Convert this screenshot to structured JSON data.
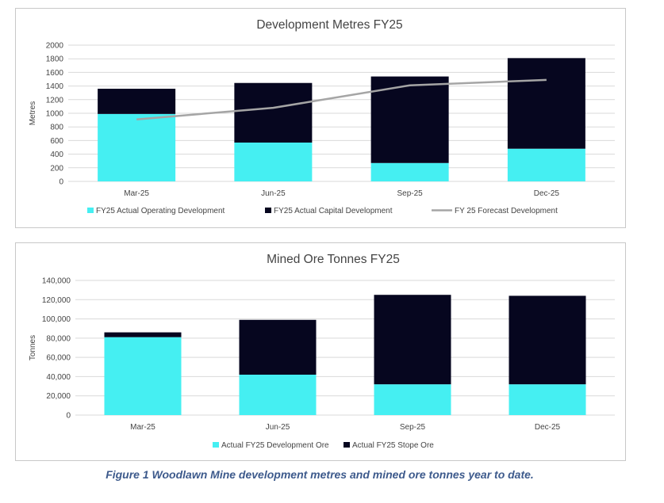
{
  "colors": {
    "operating": "#45EFF2",
    "capital": "#06061F",
    "forecast": "#A5A5A5",
    "grid": "#D9D9D9",
    "text": "#444444"
  },
  "caption": "Figure 1 Woodlawn Mine development metres and mined ore tonnes year to date.",
  "chart_data": [
    {
      "type": "bar",
      "stacked": true,
      "title": "Development Metres FY25",
      "ylabel": "Metres",
      "xlabel": "",
      "ylim": [
        0,
        2000
      ],
      "yticks": [
        0,
        200,
        400,
        600,
        800,
        1000,
        1200,
        1400,
        1600,
        1800,
        2000
      ],
      "ytick_labels": [
        "0",
        "200",
        "400",
        "600",
        "800",
        "1000",
        "1200",
        "1400",
        "1600",
        "1800",
        "2000"
      ],
      "categories": [
        "Mar-25",
        "Jun-25",
        "Sep-25",
        "Dec-25"
      ],
      "series": [
        {
          "name": "FY25 Actual Operating Development",
          "values": [
            990,
            570,
            270,
            480
          ]
        },
        {
          "name": "FY25 Actual Capital Development",
          "values": [
            370,
            875,
            1270,
            1330
          ]
        }
      ],
      "line_series": {
        "name": "FY 25 Forecast Development",
        "values": [
          910,
          1080,
          1410,
          1490
        ]
      },
      "grid": true,
      "legend": "bottom"
    },
    {
      "type": "bar",
      "stacked": true,
      "title": "Mined Ore Tonnes FY25",
      "ylabel": "Tonnes",
      "xlabel": "",
      "ylim": [
        0,
        140000
      ],
      "yticks": [
        0,
        20000,
        40000,
        60000,
        80000,
        100000,
        120000,
        140000
      ],
      "ytick_labels": [
        "0",
        "20,000",
        "40,000",
        "60,000",
        "80,000",
        "100,000",
        "120,000",
        "140,000"
      ],
      "categories": [
        "Mar-25",
        "Jun-25",
        "Sep-25",
        "Dec-25"
      ],
      "series": [
        {
          "name": "Actual FY25 Development Ore",
          "values": [
            81000,
            42000,
            32000,
            32000
          ]
        },
        {
          "name": "Actual FY25 Stope Ore",
          "values": [
            5000,
            57000,
            93000,
            92000
          ]
        }
      ],
      "grid": true,
      "legend": "bottom"
    }
  ]
}
